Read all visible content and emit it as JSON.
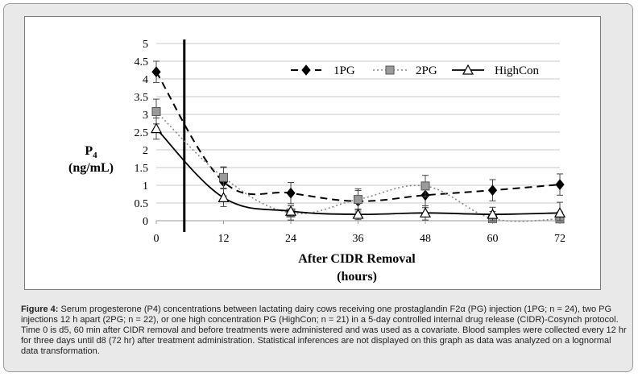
{
  "chart_data": {
    "type": "line",
    "ylabel": "P4",
    "ylabel_unit": "(ng/mL)",
    "xlabel_line1": "After CIDR Removal",
    "xlabel_line2": "(hours)",
    "x": [
      0,
      12,
      24,
      36,
      48,
      60,
      72
    ],
    "x_tick_labels": [
      "0",
      "12",
      "24",
      "36",
      "48",
      "60",
      "72"
    ],
    "y_tick_labels": [
      "0",
      "0.5",
      "1",
      "1.5",
      "2",
      "2.5",
      "3",
      "3.5",
      "4",
      "4.5",
      "5"
    ],
    "xlim": [
      0,
      72
    ],
    "ylim": [
      0,
      5
    ],
    "y_step": 0.5,
    "grid": "horizontal",
    "vertical_marker_x": 5,
    "legend_position": "top-right",
    "series": [
      {
        "name": "1PG",
        "color": "#000000",
        "line_style": "dashed",
        "marker": "diamond",
        "values": [
          4.2,
          1.1,
          0.78,
          0.55,
          0.72,
          0.86,
          1.02
        ],
        "errors": [
          0.3,
          0.4,
          0.3,
          0.3,
          0.35,
          0.3,
          0.3
        ]
      },
      {
        "name": "2PG",
        "color": "#888888",
        "line_style": "dotted",
        "marker": "square",
        "values": [
          3.08,
          1.22,
          0.22,
          0.6,
          0.98,
          0.06,
          0.05
        ],
        "errors": [
          0.35,
          0.3,
          0.2,
          0.3,
          0.3,
          0.2,
          0.2
        ]
      },
      {
        "name": "HighCon",
        "color": "#000000",
        "line_style": "solid",
        "marker": "triangle",
        "values": [
          2.6,
          0.65,
          0.27,
          0.18,
          0.22,
          0.18,
          0.22
        ],
        "errors": [
          0.3,
          0.25,
          0.15,
          0.15,
          0.2,
          0.2,
          0.3
        ]
      }
    ]
  },
  "caption": {
    "label": "Figure 4:",
    "text": " Serum progesterone (P4) concentrations between lactating dairy cows receiving one prostaglandin F2α (PG) injection (1PG; n = 24), two PG injections 12 h apart (2PG; n = 22), or one high concentration PG (HighCon; n = 21) in a 5-day controlled internal drug release (CIDR)-Cosynch protocol. Time 0 is d5, 60 min after CIDR removal and before treatments were administered and was used as a covariate. Blood samples were collected every 12 hr for three days until d8 (72 hr) after treatment administration. Statistical inferences are not displayed on this graph as data was analyzed on a lognormal data transformation."
  }
}
